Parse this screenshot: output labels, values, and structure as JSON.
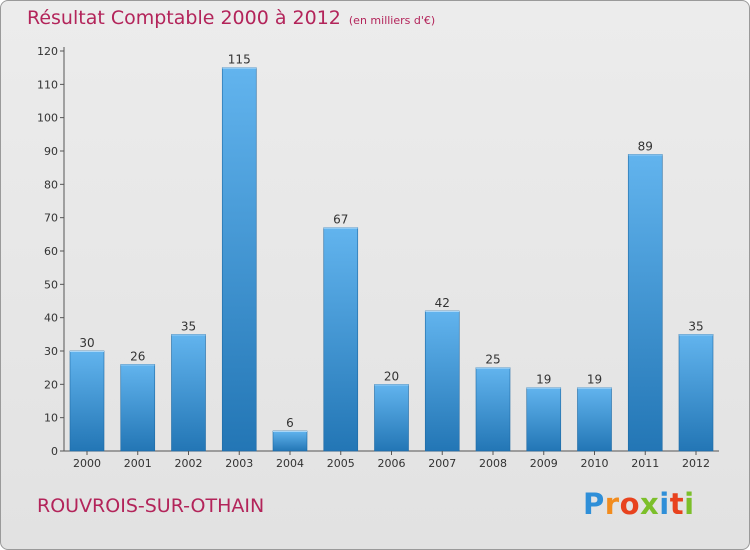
{
  "header": {
    "title": "Résultat Comptable 2000 à 2012",
    "subtitle": "(en milliers d'€)"
  },
  "footer": {
    "commune": "ROUVROIS-SUR-OTHAIN",
    "logo_letters": [
      "P",
      "r",
      "o",
      "x",
      "i",
      "t",
      "i"
    ],
    "logo_colors": [
      "#2f8fd8",
      "#f28c1e",
      "#e8421e",
      "#7cbf2a",
      "#2f8fd8",
      "#e8421e",
      "#7cbf2a"
    ]
  },
  "colors": {
    "bar_light": "#62b4ee",
    "bar_dark": "#2376b5",
    "title": "#b3245a"
  },
  "chart_data": {
    "type": "bar",
    "title": "Résultat Comptable 2000 à 2012",
    "subtitle": "(en milliers d'€)",
    "categories": [
      "2000",
      "2001",
      "2002",
      "2003",
      "2004",
      "2005",
      "2006",
      "2007",
      "2008",
      "2009",
      "2010",
      "2011",
      "2012"
    ],
    "values": [
      30,
      26,
      35,
      115,
      6,
      67,
      20,
      42,
      25,
      19,
      19,
      89,
      35
    ],
    "ylim": [
      0,
      120
    ],
    "yticks": [
      0,
      10,
      20,
      30,
      40,
      50,
      60,
      70,
      80,
      90,
      100,
      110,
      120
    ],
    "grid": false,
    "legend": "none"
  }
}
